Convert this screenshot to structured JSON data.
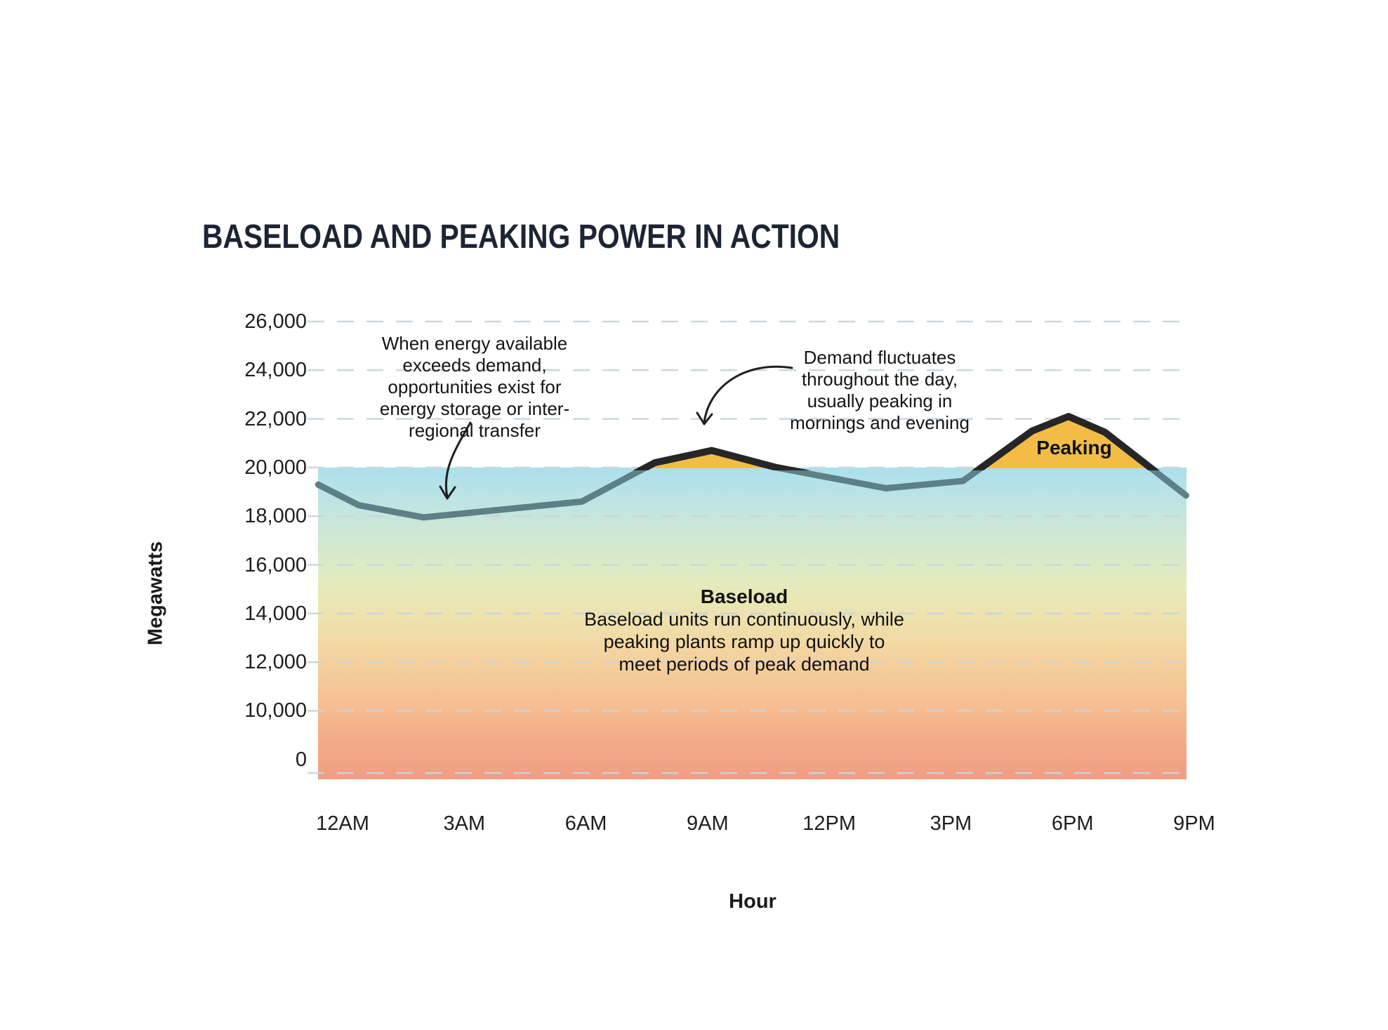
{
  "title": "BASELOAD AND PEAKING POWER IN ACTION",
  "axes": {
    "y_label": "Megawatts",
    "x_label": "Hour",
    "y_ticks": [
      {
        "label": "26,000",
        "value": 26000
      },
      {
        "label": "24,000",
        "value": 24000
      },
      {
        "label": "22,000",
        "value": 22000
      },
      {
        "label": "20,000",
        "value": 20000
      },
      {
        "label": "18,000",
        "value": 18000
      },
      {
        "label": "16,000",
        "value": 16000
      },
      {
        "label": "14,000",
        "value": 14000
      },
      {
        "label": "12,000",
        "value": 12000
      },
      {
        "label": "10,000",
        "value": 10000
      },
      {
        "label": "0",
        "value": 0
      }
    ],
    "x_ticks": [
      {
        "label": "12AM",
        "hour": 0
      },
      {
        "label": "3AM",
        "hour": 3
      },
      {
        "label": "6AM",
        "hour": 6
      },
      {
        "label": "9AM",
        "hour": 9
      },
      {
        "label": "12PM",
        "hour": 12
      },
      {
        "label": "3PM",
        "hour": 15
      },
      {
        "label": "6PM",
        "hour": 18
      },
      {
        "label": "9PM",
        "hour": 21
      }
    ]
  },
  "annotations": {
    "surplus": {
      "lines": [
        "When energy available",
        "exceeds demand,",
        "opportunities exist for",
        "energy storage or inter-",
        "regional transfer"
      ]
    },
    "fluctuation": {
      "lines": [
        "Demand fluctuates",
        "throughout the day,",
        "usually peaking in",
        "mornings and evening"
      ]
    },
    "peaking_label": "Peaking",
    "baseload_heading": "Baseload",
    "baseload_lines": [
      "Baseload units run continuously, while",
      "peaking plants ramp up quickly to",
      "meet periods of peak demand"
    ]
  },
  "chart_data": {
    "type": "line",
    "title": "BASELOAD AND PEAKING POWER IN ACTION",
    "xlabel": "Hour",
    "ylabel": "Megawatts",
    "ylim": [
      0,
      26000
    ],
    "grid": "dashed horizontal lines at every y tick",
    "legend": "none",
    "baseload_level_mw": 20000,
    "regions": {
      "baseload": "gradient-filled area from 0 up to 20,000 MW across all hours",
      "peaking": "yellow area wherever demand exceeds 20,000 MW (around 9AM and 6PM peaks)"
    },
    "series": [
      {
        "name": "Demand",
        "points": [
          {
            "hour": -0.6,
            "mw": 19300
          },
          {
            "hour": 0.4,
            "mw": 18450
          },
          {
            "hour": 2.0,
            "mw": 17950
          },
          {
            "hour": 5.9,
            "mw": 18600
          },
          {
            "hour": 7.7,
            "mw": 20200
          },
          {
            "hour": 9.1,
            "mw": 20700
          },
          {
            "hour": 10.7,
            "mw": 20000
          },
          {
            "hour": 13.4,
            "mw": 19150
          },
          {
            "hour": 15.3,
            "mw": 19450
          },
          {
            "hour": 17.0,
            "mw": 21500
          },
          {
            "hour": 17.9,
            "mw": 22100
          },
          {
            "hour": 18.8,
            "mw": 21450
          },
          {
            "hour": 20.8,
            "mw": 18850
          }
        ]
      }
    ]
  },
  "colors": {
    "title_text": "#1d2433",
    "body_text": "#141414",
    "grid_dash": "#ccd5dc",
    "line_below_baseload": "#5d8087",
    "line_above_baseload": "#262626",
    "peaking_fill": "#f2bc45",
    "arrow": "#1f1f1f",
    "baseload_gradient": [
      "#abdfec",
      "#c0e5e1",
      "#d3e8d0",
      "#e5ebbc",
      "#efe0ab",
      "#f4d09d",
      "#f6c093",
      "#f3ab88",
      "#f09d83"
    ]
  }
}
